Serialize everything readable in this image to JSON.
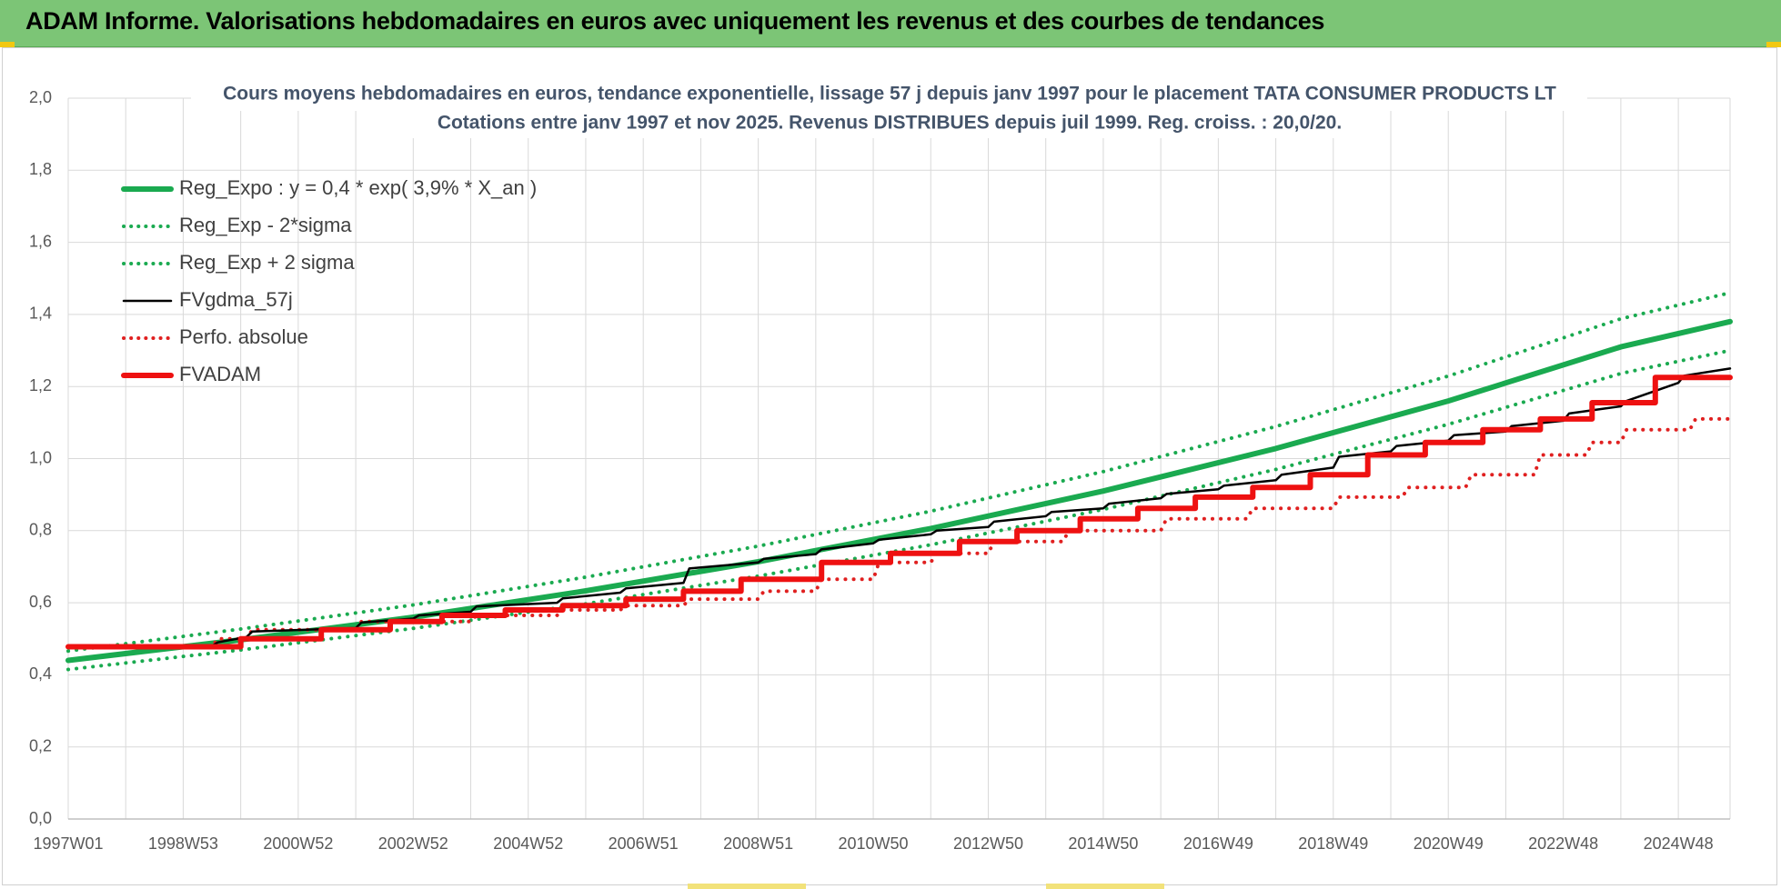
{
  "header": {
    "title": "ADAM Informe. Valorisations hebdomadaires en euros avec uniquement les revenus et des courbes de tendances"
  },
  "colors": {
    "banner": "#7cc576",
    "reg_expo": "#1aaa50",
    "fv_gdma": "#000000",
    "perfo": "#e02020",
    "fvadam": "#ee1111",
    "grid": "#d9d9d9"
  },
  "chart_data": {
    "type": "line",
    "title": "Cours moyens hebdomadaires en euros, tendance exponentielle, lissage 57 j depuis janv 1997 pour le placement TATA CONSUMER PRODUCTS LT",
    "subtitle": "Cotations entre janv 1997 et nov 2025. Revenus DISTRIBUES depuis juil 1999. Reg. croiss. : 20,0/20.",
    "xlabel": "",
    "ylabel": "",
    "x_range": [
      1997.0,
      2025.9
    ],
    "ylim": [
      0,
      2.0
    ],
    "y_ticks": [
      "0,0",
      "0,2",
      "0,4",
      "0,6",
      "0,8",
      "1,0",
      "1,2",
      "1,4",
      "1,6",
      "1,8",
      "2,0"
    ],
    "x_ticks": [
      {
        "label": "1997W01",
        "year": 1997.0
      },
      {
        "label": "1998W53",
        "year": 1999.0
      },
      {
        "label": "2000W52",
        "year": 2001.0
      },
      {
        "label": "2002W52",
        "year": 2003.0
      },
      {
        "label": "2004W52",
        "year": 2005.0
      },
      {
        "label": "2006W51",
        "year": 2007.0
      },
      {
        "label": "2008W51",
        "year": 2009.0
      },
      {
        "label": "2010W50",
        "year": 2011.0
      },
      {
        "label": "2012W50",
        "year": 2013.0
      },
      {
        "label": "2014W50",
        "year": 2015.0
      },
      {
        "label": "2016W49",
        "year": 2017.0
      },
      {
        "label": "2018W49",
        "year": 2019.0
      },
      {
        "label": "2020W49",
        "year": 2021.0
      },
      {
        "label": "2022W48",
        "year": 2023.0
      },
      {
        "label": "2024W48",
        "year": 2025.0
      }
    ],
    "grid": true,
    "legend_position": "top-left",
    "series": [
      {
        "name": "Reg_Expo : y = 0,4 * exp( 3,9% *  X_an )",
        "style": "solid-thick",
        "color": "#1aaa50",
        "x": [
          1997.0,
          2000.0,
          2003.0,
          2006.0,
          2009.0,
          2012.0,
          2015.0,
          2018.0,
          2021.0,
          2024.0,
          2025.9
        ],
        "values": [
          0.44,
          0.497,
          0.56,
          0.633,
          0.714,
          0.806,
          0.91,
          1.028,
          1.16,
          1.31,
          1.38
        ]
      },
      {
        "name": "Reg_Exp - 2*sigma",
        "style": "dotted",
        "color": "#1aaa50",
        "x": [
          1997.0,
          2000.0,
          2003.0,
          2006.0,
          2009.0,
          2012.0,
          2015.0,
          2018.0,
          2021.0,
          2024.0,
          2025.9
        ],
        "values": [
          0.415,
          0.469,
          0.529,
          0.597,
          0.674,
          0.761,
          0.859,
          0.97,
          1.095,
          1.236,
          1.3
        ]
      },
      {
        "name": "Reg_Exp + 2 sigma",
        "style": "dotted",
        "color": "#1aaa50",
        "x": [
          1997.0,
          2000.0,
          2003.0,
          2006.0,
          2009.0,
          2012.0,
          2015.0,
          2018.0,
          2021.0,
          2024.0,
          2025.9
        ],
        "values": [
          0.466,
          0.527,
          0.594,
          0.671,
          0.757,
          0.854,
          0.964,
          1.089,
          1.229,
          1.388,
          1.46
        ]
      },
      {
        "name": "FVgdma_57j",
        "style": "solid",
        "color": "#000000",
        "x": [
          1997.0,
          1999.5,
          1999.6,
          2000.1,
          2000.2,
          2002.0,
          2002.1,
          2003.0,
          2003.1,
          2004.0,
          2004.1,
          2005.5,
          2005.6,
          2006.6,
          2006.7,
          2007.7,
          2007.8,
          2009.0,
          2009.1,
          2010.0,
          2010.1,
          2011.0,
          2011.1,
          2012.0,
          2012.1,
          2013.0,
          2013.1,
          2014.0,
          2014.1,
          2015.0,
          2015.1,
          2016.0,
          2016.1,
          2017.0,
          2017.1,
          2018.0,
          2018.1,
          2019.0,
          2019.1,
          2020.0,
          2020.1,
          2021.0,
          2021.1,
          2022.0,
          2022.1,
          2023.0,
          2023.1,
          2024.0,
          2024.1,
          2025.0,
          2025.1,
          2025.9
        ],
        "values": [
          0.476,
          0.48,
          0.49,
          0.505,
          0.52,
          0.53,
          0.545,
          0.556,
          0.565,
          0.575,
          0.59,
          0.6,
          0.612,
          0.628,
          0.64,
          0.655,
          0.695,
          0.712,
          0.722,
          0.735,
          0.748,
          0.765,
          0.775,
          0.79,
          0.8,
          0.81,
          0.825,
          0.84,
          0.852,
          0.862,
          0.875,
          0.89,
          0.902,
          0.915,
          0.925,
          0.94,
          0.955,
          0.975,
          1.005,
          1.02,
          1.035,
          1.05,
          1.065,
          1.075,
          1.09,
          1.105,
          1.125,
          1.145,
          1.16,
          1.21,
          1.23,
          1.25
        ]
      },
      {
        "name": "Perfo. absolue",
        "style": "dotted",
        "color": "#e02020",
        "x": [
          1997.0,
          1999.5,
          1999.6,
          2000.1,
          2000.2,
          2002.0,
          2002.1,
          2004.0,
          2004.1,
          2005.5,
          2005.6,
          2006.6,
          2006.7,
          2007.7,
          2007.8,
          2009.0,
          2009.1,
          2010.0,
          2010.1,
          2011.0,
          2011.1,
          2012.0,
          2012.1,
          2013.0,
          2013.1,
          2014.3,
          2014.4,
          2016.0,
          2016.1,
          2017.5,
          2017.6,
          2019.0,
          2019.1,
          2020.2,
          2020.3,
          2021.3,
          2021.4,
          2022.5,
          2022.6,
          2023.4,
          2023.5,
          2024.0,
          2024.1,
          2025.2,
          2025.3,
          2025.9
        ],
        "values": [
          0.478,
          0.478,
          0.5,
          0.5,
          0.525,
          0.525,
          0.548,
          0.548,
          0.565,
          0.565,
          0.58,
          0.58,
          0.592,
          0.592,
          0.61,
          0.61,
          0.632,
          0.632,
          0.665,
          0.665,
          0.712,
          0.712,
          0.737,
          0.737,
          0.77,
          0.77,
          0.8,
          0.8,
          0.833,
          0.833,
          0.862,
          0.862,
          0.893,
          0.893,
          0.92,
          0.92,
          0.955,
          0.955,
          1.01,
          1.01,
          1.045,
          1.045,
          1.08,
          1.08,
          1.11,
          1.11
        ]
      },
      {
        "name": "FVADAM",
        "style": "solid-thick",
        "color": "#ee1111",
        "x": [
          1997.0,
          2000.0,
          2000.0,
          2001.4,
          2001.4,
          2002.6,
          2002.6,
          2003.5,
          2003.5,
          2004.6,
          2004.6,
          2005.6,
          2005.6,
          2006.7,
          2006.7,
          2007.7,
          2007.7,
          2008.7,
          2008.7,
          2010.1,
          2010.1,
          2011.3,
          2011.3,
          2012.5,
          2012.5,
          2013.5,
          2013.5,
          2014.6,
          2014.6,
          2015.6,
          2015.6,
          2016.6,
          2016.6,
          2017.6,
          2017.6,
          2018.6,
          2018.6,
          2019.6,
          2019.6,
          2020.6,
          2020.6,
          2021.6,
          2021.6,
          2022.6,
          2022.6,
          2023.5,
          2023.5,
          2024.6,
          2024.6,
          2025.9
        ],
        "values": [
          0.478,
          0.478,
          0.5,
          0.5,
          0.525,
          0.525,
          0.548,
          0.548,
          0.565,
          0.565,
          0.58,
          0.58,
          0.592,
          0.592,
          0.61,
          0.61,
          0.632,
          0.632,
          0.665,
          0.665,
          0.712,
          0.712,
          0.737,
          0.737,
          0.77,
          0.77,
          0.8,
          0.8,
          0.833,
          0.833,
          0.862,
          0.862,
          0.893,
          0.893,
          0.92,
          0.92,
          0.955,
          0.955,
          1.01,
          1.01,
          1.045,
          1.045,
          1.08,
          1.08,
          1.11,
          1.11,
          1.155,
          1.155,
          1.225,
          1.225
        ]
      }
    ]
  }
}
